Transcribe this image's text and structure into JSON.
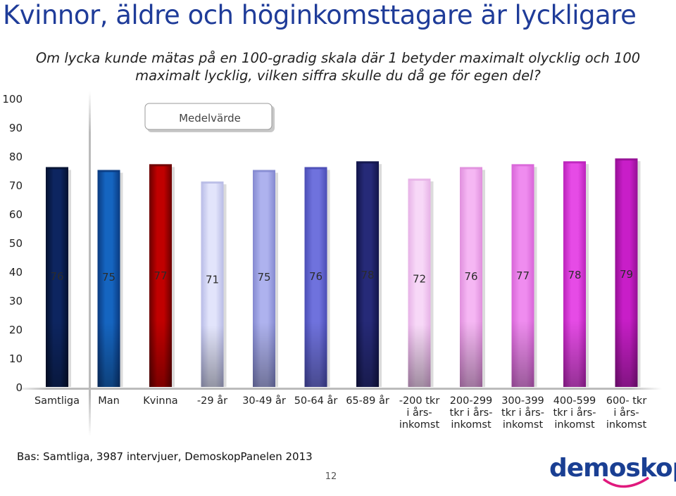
{
  "title": "Kvinnor, äldre och höginkomsttagare är lyckligare",
  "question": "Om lycka kunde mätas på en 100-gradig skala där 1 betyder maximalt olycklig och 100 maximalt lycklig, vilken siffra skulle du då ge för egen del?",
  "footer": {
    "source": "Bas: Samtliga, 3987 intervjuer, DemoskopPanelen 2013",
    "page_number": "12",
    "logo_text": "demoskop"
  },
  "chart_data": {
    "type": "bar",
    "legend_label": "Medelvärde",
    "yticks": [
      "100",
      "90",
      "80",
      "70",
      "60",
      "50",
      "40",
      "30",
      "20",
      "10",
      "0"
    ],
    "ylim": [
      0,
      100
    ],
    "categories": [
      [
        "Samtliga"
      ],
      [
        "Man"
      ],
      [
        "Kvinna"
      ],
      [
        "-29 år"
      ],
      [
        "30-49 år"
      ],
      [
        "50-64 år"
      ],
      [
        "65-89 år"
      ],
      [
        "-200 tkr",
        "i års-",
        "inkomst"
      ],
      [
        "200-299",
        "tkr i års-",
        "inkomst"
      ],
      [
        "300-399",
        "tkr i års-",
        "inkomst"
      ],
      [
        "400-599",
        "tkr i års-",
        "inkomst"
      ],
      [
        "600- tkr",
        "i års-",
        "inkomst"
      ]
    ],
    "values": [
      76,
      75,
      77,
      71,
      75,
      76,
      78,
      72,
      76,
      77,
      78,
      79
    ],
    "value_labels": [
      "76",
      "75",
      "77",
      "71",
      "75",
      "76",
      "78",
      "72",
      "76",
      "77",
      "78",
      "79"
    ],
    "bar_colors": [
      "#0d2560",
      "#1565c0",
      "#c00000",
      "#e2e4fb",
      "#aeb2ee",
      "#6f72dd",
      "#262a78",
      "#f7d8f7",
      "#f5b7f3",
      "#ef8cef",
      "#e64be6",
      "#c81ec8"
    ],
    "bar_dark_colors": [
      "#041130",
      "#0a3a80",
      "#6a0000",
      "#b8bbe6",
      "#8489d0",
      "#4a4db5",
      "#12154a",
      "#e7b2e7",
      "#e08fdd",
      "#d865d8",
      "#bb22bb",
      "#951095"
    ]
  }
}
